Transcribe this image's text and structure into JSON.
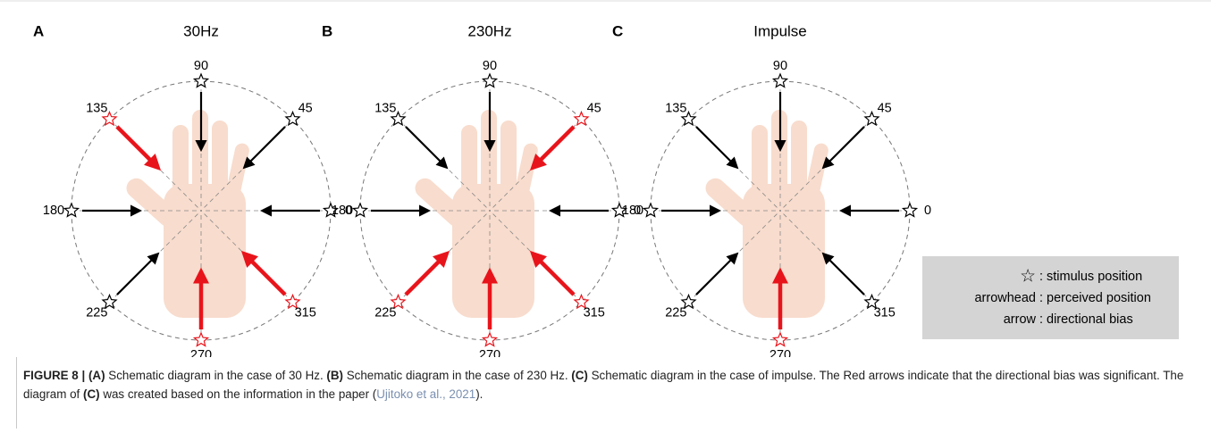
{
  "panels": [
    {
      "letter": "A",
      "title": "30Hz",
      "stimuli": [
        {
          "angle": 0,
          "color": "#000000"
        },
        {
          "angle": 45,
          "color": "#000000"
        },
        {
          "angle": 90,
          "color": "#000000"
        },
        {
          "angle": 135,
          "color": "#e8141b"
        },
        {
          "angle": 180,
          "color": "#000000"
        },
        {
          "angle": 225,
          "color": "#000000"
        },
        {
          "angle": 270,
          "color": "#e8141b"
        },
        {
          "angle": 315,
          "color": "#e8141b"
        }
      ]
    },
    {
      "letter": "B",
      "title": "230Hz",
      "stimuli": [
        {
          "angle": 0,
          "color": "#000000"
        },
        {
          "angle": 45,
          "color": "#e8141b"
        },
        {
          "angle": 90,
          "color": "#000000"
        },
        {
          "angle": 135,
          "color": "#000000"
        },
        {
          "angle": 180,
          "color": "#000000"
        },
        {
          "angle": 225,
          "color": "#e8141b"
        },
        {
          "angle": 270,
          "color": "#e8141b"
        },
        {
          "angle": 315,
          "color": "#e8141b"
        }
      ]
    },
    {
      "letter": "C",
      "title": "Impulse",
      "stimuli": [
        {
          "angle": 0,
          "color": "#000000"
        },
        {
          "angle": 45,
          "color": "#000000"
        },
        {
          "angle": 90,
          "color": "#000000"
        },
        {
          "angle": 135,
          "color": "#000000"
        },
        {
          "angle": 180,
          "color": "#000000"
        },
        {
          "angle": 225,
          "color": "#000000"
        },
        {
          "angle": 270,
          "color": "#e8141b"
        },
        {
          "angle": 315,
          "color": "#000000"
        }
      ]
    }
  ],
  "legend": {
    "separator": ":",
    "items": [
      {
        "term": "☆",
        "definition": "stimulus position"
      },
      {
        "term": "arrowhead",
        "definition": "perceived position"
      },
      {
        "term": "arrow",
        "definition": "directional bias"
      }
    ]
  },
  "caption": [
    {
      "text": "FIGURE 8 | ",
      "style": "bold"
    },
    {
      "text": "(A)",
      "style": "bold"
    },
    {
      "text": " Schematic diagram in the case of 30 Hz. ",
      "style": "plain"
    },
    {
      "text": "(B)",
      "style": "bold"
    },
    {
      "text": " Schematic diagram in the case of 230 Hz. ",
      "style": "plain"
    },
    {
      "text": "(C)",
      "style": "bold"
    },
    {
      "text": " Schematic diagram in the case of impulse. The Red arrows indicate that the directional bias was significant. The diagram of ",
      "style": "plain"
    },
    {
      "text": "(C)",
      "style": "bold"
    },
    {
      "text": " was created based on the information in the paper (",
      "style": "plain"
    },
    {
      "text": "Ujitoko et al., 2021",
      "style": "link"
    },
    {
      "text": ").",
      "style": "plain"
    }
  ]
}
